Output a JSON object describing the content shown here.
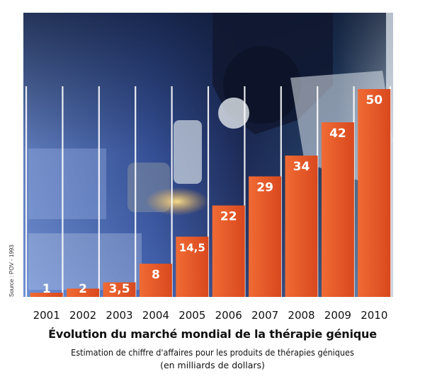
{
  "chart_data": {
    "type": "bar",
    "title": "Évolution du marché mondial de la thérapie génique",
    "subtitle": "Estimation de chiffre d'affaires pour les produits de thérapies géniques",
    "ylabel": "(en milliards de dollars)",
    "xlabel": "",
    "source": "Source : POV - 1993",
    "categories": [
      "2001",
      "2002",
      "2003",
      "2004",
      "2005",
      "2006",
      "2007",
      "2008",
      "2009",
      "2010"
    ],
    "values": [
      1,
      2,
      3.5,
      8,
      14.5,
      22,
      29,
      34,
      42,
      50
    ],
    "value_labels": [
      "1",
      "2",
      "3,5",
      "8",
      "14,5",
      "22",
      "29",
      "34",
      "42",
      "50"
    ],
    "ylim": [
      0,
      50
    ],
    "grid": false,
    "colors": {
      "bar": "#e8582a",
      "bar_dark": "#c8401a",
      "label": "#ffffff",
      "background": "photo"
    }
  }
}
